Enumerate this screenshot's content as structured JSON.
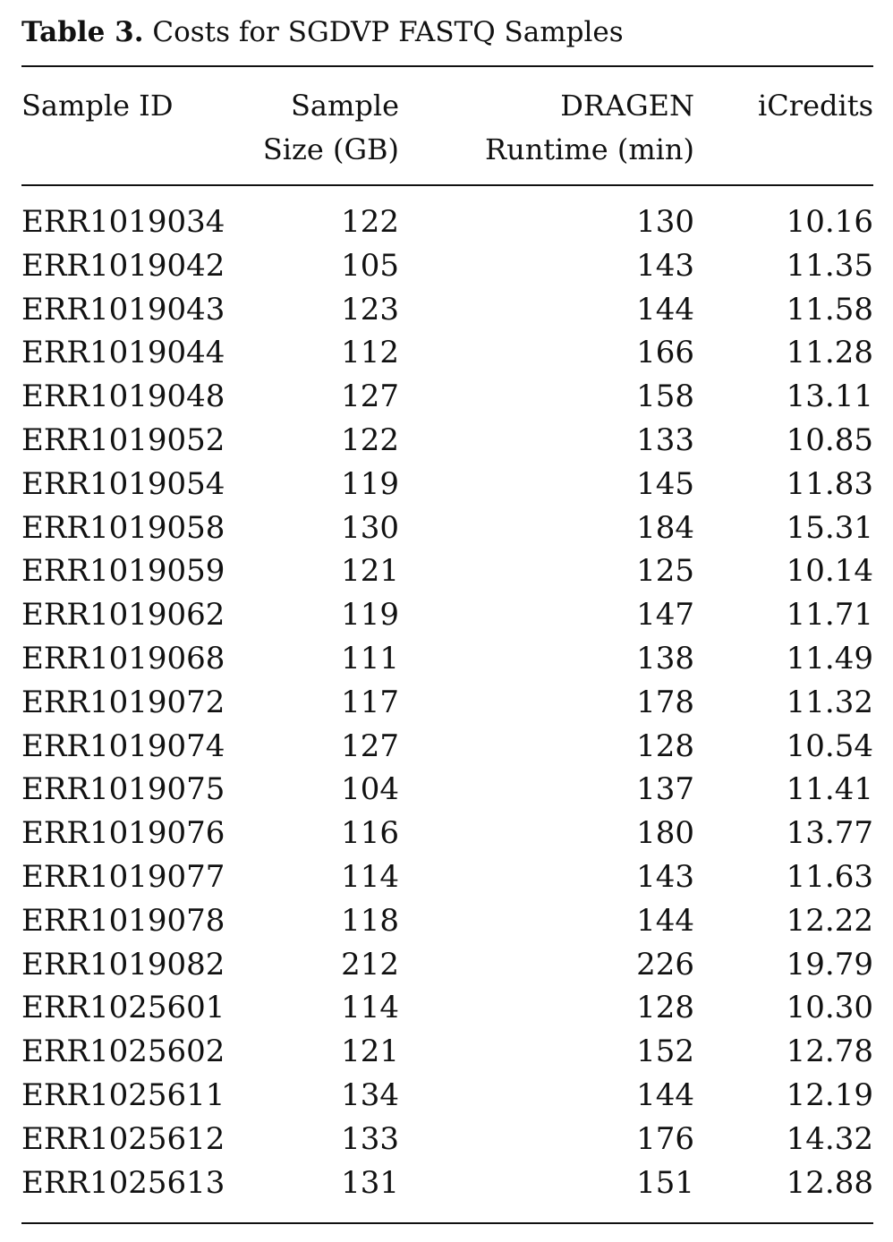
{
  "caption": {
    "label": "Table 3.",
    "text": "Costs for SGDVP FASTQ Samples"
  },
  "headers": {
    "sample_id": "Sample ID",
    "sample_size": [
      "Sample",
      "Size (GB)"
    ],
    "runtime": [
      "DRAGEN",
      "Runtime (min)"
    ],
    "icredits": "iCredits"
  },
  "rows": [
    {
      "id": "ERR1019034",
      "size": "122",
      "runtime": "130",
      "icredits": "10.16"
    },
    {
      "id": "ERR1019042",
      "size": "105",
      "runtime": "143",
      "icredits": "11.35"
    },
    {
      "id": "ERR1019043",
      "size": "123",
      "runtime": "144",
      "icredits": "11.58"
    },
    {
      "id": "ERR1019044",
      "size": "112",
      "runtime": "166",
      "icredits": "11.28"
    },
    {
      "id": "ERR1019048",
      "size": "127",
      "runtime": "158",
      "icredits": "13.11"
    },
    {
      "id": "ERR1019052",
      "size": "122",
      "runtime": "133",
      "icredits": "10.85"
    },
    {
      "id": "ERR1019054",
      "size": "119",
      "runtime": "145",
      "icredits": "11.83"
    },
    {
      "id": "ERR1019058",
      "size": "130",
      "runtime": "184",
      "icredits": "15.31"
    },
    {
      "id": "ERR1019059",
      "size": "121",
      "runtime": "125",
      "icredits": "10.14"
    },
    {
      "id": "ERR1019062",
      "size": "119",
      "runtime": "147",
      "icredits": "11.71"
    },
    {
      "id": "ERR1019068",
      "size": "111",
      "runtime": "138",
      "icredits": "11.49"
    },
    {
      "id": "ERR1019072",
      "size": "117",
      "runtime": "178",
      "icredits": "11.32"
    },
    {
      "id": "ERR1019074",
      "size": "127",
      "runtime": "128",
      "icredits": "10.54"
    },
    {
      "id": "ERR1019075",
      "size": "104",
      "runtime": "137",
      "icredits": "11.41"
    },
    {
      "id": "ERR1019076",
      "size": "116",
      "runtime": "180",
      "icredits": "13.77"
    },
    {
      "id": "ERR1019077",
      "size": "114",
      "runtime": "143",
      "icredits": "11.63"
    },
    {
      "id": "ERR1019078",
      "size": "118",
      "runtime": "144",
      "icredits": "12.22"
    },
    {
      "id": "ERR1019082",
      "size": "212",
      "runtime": "226",
      "icredits": "19.79"
    },
    {
      "id": "ERR1025601",
      "size": "114",
      "runtime": "128",
      "icredits": "10.30"
    },
    {
      "id": "ERR1025602",
      "size": "121",
      "runtime": "152",
      "icredits": "12.78"
    },
    {
      "id": "ERR1025611",
      "size": "134",
      "runtime": "144",
      "icredits": "12.19"
    },
    {
      "id": "ERR1025612",
      "size": "133",
      "runtime": "176",
      "icredits": "14.32"
    },
    {
      "id": "ERR1025613",
      "size": "131",
      "runtime": "151",
      "icredits": "12.88"
    }
  ]
}
